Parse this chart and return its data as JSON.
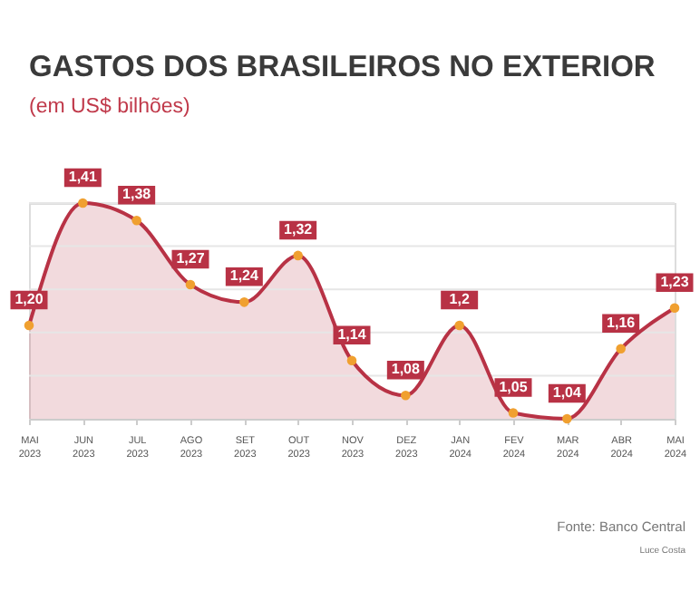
{
  "chart_data": {
    "type": "area",
    "title": "GASTOS DOS BRASILEIROS NO EXTERIOR",
    "subtitle": "(em US$ bilhões)",
    "categories": [
      "MAI 2023",
      "JUN 2023",
      "JUL 2023",
      "AGO 2023",
      "SET 2023",
      "OUT 2023",
      "NOV 2023",
      "DEZ 2023",
      "JAN 2024",
      "FEV 2024",
      "MAR 2024",
      "ABR 2024",
      "MAI 2024"
    ],
    "series": [
      {
        "color": "#b83245",
        "values": [
          1.2,
          1.41,
          1.38,
          1.27,
          1.24,
          1.32,
          1.14,
          1.08,
          1.2,
          1.05,
          1.04,
          1.16,
          1.23
        ],
        "value_labels": [
          "1,20",
          "1,41",
          "1,38",
          "1,27",
          "1,24",
          "1,32",
          "1,14",
          "1,08",
          "1,2",
          "1,05",
          "1,04",
          "1,16",
          "1,23"
        ]
      }
    ],
    "ylim": [
      1.04,
      1.41
    ],
    "yticks": [
      {
        "value": 1.114,
        "label": null
      },
      {
        "value": 1.188,
        "label": null
      },
      {
        "value": 1.262,
        "label": null
      },
      {
        "value": 1.336,
        "label": null
      },
      {
        "value": 1.41,
        "label": null
      }
    ],
    "tick_labels": "x",
    "grid": "y",
    "marker": "circle",
    "line_style": "solid",
    "legend": false,
    "annotations": [
      "Fonte: Banco Central",
      "Luce Costa"
    ]
  }
}
